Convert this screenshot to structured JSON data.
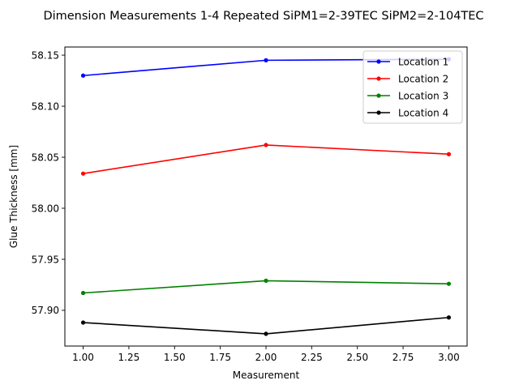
{
  "chart_data": {
    "type": "line",
    "title": "Dimension Measurements 1-4 Repeated SiPM1=2-39TEC SiPM2=2-104TEC",
    "xlabel": "Measurement",
    "ylabel": "Glue Thickness [mm]",
    "xlim": [
      0.9,
      3.1
    ],
    "ylim": [
      57.865,
      58.158
    ],
    "xticks": [
      1.0,
      1.25,
      1.5,
      1.75,
      2.0,
      2.25,
      2.5,
      2.75,
      3.0
    ],
    "xtick_labels": [
      "1.00",
      "1.25",
      "1.50",
      "1.75",
      "2.00",
      "2.25",
      "2.50",
      "2.75",
      "3.00"
    ],
    "yticks": [
      57.9,
      57.95,
      58.0,
      58.05,
      58.1,
      58.15
    ],
    "ytick_labels": [
      "57.90",
      "57.95",
      "58.00",
      "58.05",
      "58.10",
      "58.15"
    ],
    "grid": false,
    "legend_position": "top-right",
    "x": [
      1,
      2,
      3
    ],
    "series": [
      {
        "name": "Location 1",
        "color": "#0000ff",
        "values": [
          58.13,
          58.145,
          58.146
        ]
      },
      {
        "name": "Location 2",
        "color": "#ff0000",
        "values": [
          58.034,
          58.062,
          58.053
        ]
      },
      {
        "name": "Location 3",
        "color": "#008000",
        "values": [
          57.917,
          57.929,
          57.926
        ]
      },
      {
        "name": "Location 4",
        "color": "#000000",
        "values": [
          57.888,
          57.877,
          57.893
        ]
      }
    ]
  }
}
